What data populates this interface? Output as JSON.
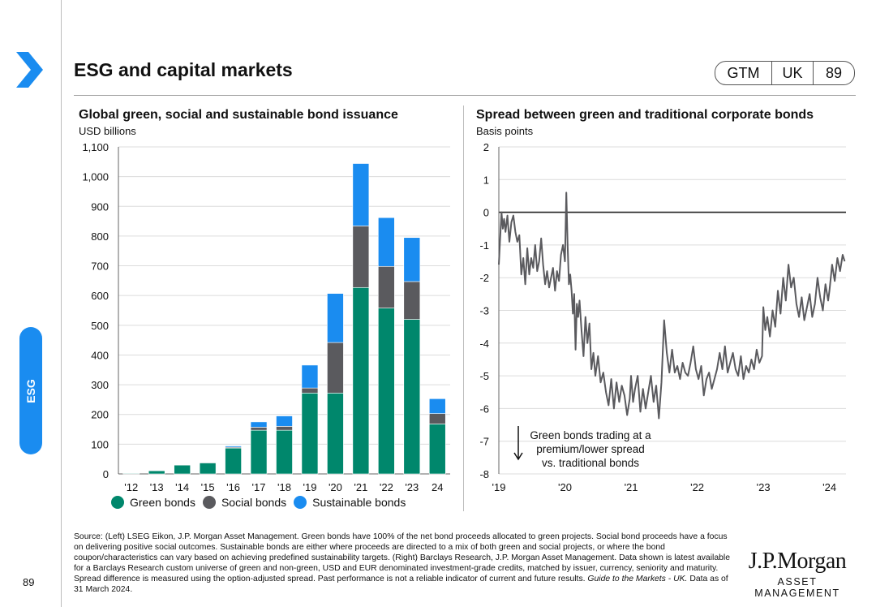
{
  "header": {
    "title": "ESG and capital markets",
    "badge": {
      "series": "GTM",
      "region": "UK",
      "page": "89"
    }
  },
  "sidebar": {
    "tab_label": "ESG",
    "page_number": "89"
  },
  "left_chart": {
    "title": "Global green, social and sustainable bond issuance",
    "subtitle": "USD billions",
    "legend": [
      {
        "label": "Green bonds",
        "color": "#00876c"
      },
      {
        "label": "Social bonds",
        "color": "#5a5a5e"
      },
      {
        "label": "Sustainable bonds",
        "color": "#1a8cf0"
      }
    ]
  },
  "right_chart": {
    "title": "Spread between green and traditional corporate bonds",
    "subtitle": "Basis points",
    "annotation": [
      "Green bonds trading at a",
      "premium/lower spread",
      "vs. traditional bonds"
    ]
  },
  "footer": {
    "source_text": "Source: (Left) LSEG Eikon, J.P. Morgan Asset Management. Green bonds have 100% of the net bond proceeds allocated to green projects. Social bond proceeds have a focus on delivering positive social outcomes. Sustainable bonds are either where proceeds are directed to a mix of both green and social projects, or where the bond coupon/characteristics can vary based on achieving predefined sustainability targets. (Right) Barclays Research, J.P. Morgan Asset Management. Data shown is latest available for a Barclays Research custom universe of green and non-green, USD and EUR denominated investment-grade credits, matched by issuer, currency, seniority and maturity. Spread difference is measured using the option-adjusted spread. Past performance is not a reliable indicator of current and future results.",
    "guide_text": "Guide to the Markets - UK.",
    "date_text": "Data as of 31 March 2024.",
    "brand_name": "J.P.Morgan",
    "brand_sub": "ASSET MANAGEMENT"
  },
  "colors": {
    "accent": "#1a8cf0",
    "green": "#00876c",
    "social": "#5a5a5e"
  },
  "chart_data": [
    {
      "type": "bar",
      "stacked": true,
      "title": "Global green, social and sustainable bond issuance",
      "ylabel": "USD billions",
      "categories": [
        "'12",
        "'13",
        "'14",
        "'15",
        "'16",
        "'17",
        "'18",
        "'19",
        "'20",
        "'21",
        "'22",
        "'23",
        "24"
      ],
      "ylim": [
        0,
        1100
      ],
      "yticks": [
        0,
        100,
        200,
        300,
        400,
        500,
        600,
        700,
        800,
        900,
        1000,
        1100
      ],
      "ytick_labels": [
        "0",
        "100",
        "200",
        "300",
        "400",
        "500",
        "600",
        "700",
        "800",
        "900",
        "1,000",
        "1,100"
      ],
      "series": [
        {
          "name": "Green bonds",
          "values": [
            2,
            11,
            30,
            37,
            87,
            147,
            147,
            272,
            272,
            627,
            558,
            520,
            168
          ]
        },
        {
          "name": "Social bonds",
          "values": [
            0,
            1,
            1,
            2,
            3,
            10,
            13,
            17,
            170,
            207,
            140,
            127,
            35
          ]
        },
        {
          "name": "Sustainable bonds",
          "values": [
            0,
            0,
            1,
            1,
            4,
            18,
            35,
            77,
            165,
            210,
            164,
            148,
            50
          ]
        }
      ],
      "grid": true,
      "legend_position": "bottom"
    },
    {
      "type": "line",
      "title": "Spread between green and traditional corporate bonds",
      "ylabel": "Basis points",
      "xlim": [
        2019.0,
        2024.25
      ],
      "ylim": [
        -8,
        2
      ],
      "yticks": [
        2,
        1,
        0,
        -1,
        -2,
        -3,
        -4,
        -5,
        -6,
        -7,
        -8
      ],
      "xticks": [
        2019,
        2020,
        2021,
        2022,
        2023,
        2024
      ],
      "xtick_labels": [
        "'19",
        "'20",
        "'21",
        "'22",
        "'23",
        "'24"
      ],
      "series": [
        {
          "name": "Spread difference",
          "x": [
            2019.0,
            2019.02,
            2019.04,
            2019.06,
            2019.08,
            2019.1,
            2019.13,
            2019.16,
            2019.19,
            2019.22,
            2019.25,
            2019.28,
            2019.31,
            2019.34,
            2019.37,
            2019.4,
            2019.43,
            2019.46,
            2019.49,
            2019.52,
            2019.55,
            2019.58,
            2019.61,
            2019.64,
            2019.67,
            2019.7,
            2019.73,
            2019.76,
            2019.79,
            2019.82,
            2019.85,
            2019.88,
            2019.91,
            2019.94,
            2019.97,
            2020.0,
            2020.02,
            2020.04,
            2020.06,
            2020.08,
            2020.1,
            2020.12,
            2020.14,
            2020.16,
            2020.18,
            2020.2,
            2020.22,
            2020.25,
            2020.28,
            2020.31,
            2020.34,
            2020.37,
            2020.4,
            2020.43,
            2020.46,
            2020.5,
            2020.54,
            2020.58,
            2020.62,
            2020.66,
            2020.7,
            2020.74,
            2020.78,
            2020.82,
            2020.86,
            2020.9,
            2020.94,
            2020.98,
            2021.0,
            2021.03,
            2021.06,
            2021.1,
            2021.14,
            2021.18,
            2021.22,
            2021.26,
            2021.3,
            2021.34,
            2021.38,
            2021.42,
            2021.46,
            2021.5,
            2021.54,
            2021.58,
            2021.62,
            2021.66,
            2021.7,
            2021.74,
            2021.78,
            2021.82,
            2021.86,
            2021.9,
            2021.94,
            2021.98,
            2022.02,
            2022.06,
            2022.1,
            2022.14,
            2022.18,
            2022.22,
            2022.26,
            2022.3,
            2022.34,
            2022.38,
            2022.42,
            2022.46,
            2022.5,
            2022.54,
            2022.58,
            2022.62,
            2022.66,
            2022.7,
            2022.74,
            2022.78,
            2022.82,
            2022.86,
            2022.9,
            2022.94,
            2022.98,
            2023.0,
            2023.03,
            2023.06,
            2023.1,
            2023.14,
            2023.18,
            2023.22,
            2023.26,
            2023.3,
            2023.34,
            2023.38,
            2023.42,
            2023.46,
            2023.5,
            2023.54,
            2023.58,
            2023.62,
            2023.66,
            2023.7,
            2023.74,
            2023.78,
            2023.82,
            2023.86,
            2023.9,
            2023.94,
            2023.98,
            2024.0,
            2024.04,
            2024.08,
            2024.12,
            2024.16,
            2024.2,
            2024.23
          ],
          "y": [
            -1.6,
            -0.8,
            0.0,
            -0.5,
            -0.2,
            -0.6,
            -0.1,
            -0.9,
            -0.3,
            -0.1,
            -0.6,
            -0.9,
            -0.7,
            -1.9,
            -1.4,
            -2.2,
            -1.1,
            -1.9,
            -1.4,
            -1.7,
            -1.0,
            -1.8,
            -1.5,
            -0.8,
            -1.6,
            -2.2,
            -1.8,
            -2.3,
            -2.0,
            -1.7,
            -2.4,
            -1.8,
            -2.1,
            -1.3,
            -1.0,
            -1.5,
            0.6,
            -1.0,
            -2.2,
            -1.9,
            -2.4,
            -3.1,
            -2.5,
            -4.2,
            -2.8,
            -3.2,
            -2.7,
            -3.6,
            -4.4,
            -3.2,
            -4.0,
            -3.4,
            -4.8,
            -4.3,
            -5.0,
            -4.4,
            -5.2,
            -4.9,
            -5.5,
            -5.9,
            -5.1,
            -6.0,
            -5.2,
            -5.8,
            -5.3,
            -5.6,
            -6.2,
            -5.7,
            -5.0,
            -5.8,
            -5.4,
            -5.0,
            -6.1,
            -5.4,
            -6.0,
            -5.5,
            -5.0,
            -5.8,
            -5.3,
            -6.3,
            -5.2,
            -3.3,
            -4.3,
            -4.9,
            -4.2,
            -4.9,
            -4.7,
            -5.1,
            -4.6,
            -4.9,
            -5.0,
            -4.6,
            -4.1,
            -4.8,
            -5.1,
            -4.7,
            -5.6,
            -5.1,
            -4.9,
            -5.4,
            -5.1,
            -4.8,
            -4.3,
            -4.8,
            -4.1,
            -4.9,
            -4.6,
            -4.3,
            -4.8,
            -5.0,
            -4.4,
            -5.1,
            -4.7,
            -4.9,
            -4.5,
            -4.8,
            -4.2,
            -4.6,
            -4.4,
            -2.9,
            -3.6,
            -3.2,
            -3.8,
            -3.0,
            -3.5,
            -2.4,
            -3.1,
            -2.0,
            -2.7,
            -1.6,
            -2.3,
            -2.0,
            -2.8,
            -3.2,
            -2.6,
            -3.3,
            -2.9,
            -2.5,
            -3.2,
            -2.8,
            -2.0,
            -2.6,
            -3.0,
            -2.2,
            -2.7,
            -2.4,
            -1.6,
            -2.1,
            -1.4,
            -1.8,
            -1.3,
            -1.5
          ]
        }
      ],
      "annotations": [
        "Green bonds trading at a",
        "premium/lower spread",
        "vs. traditional bonds"
      ],
      "grid": true
    }
  ]
}
